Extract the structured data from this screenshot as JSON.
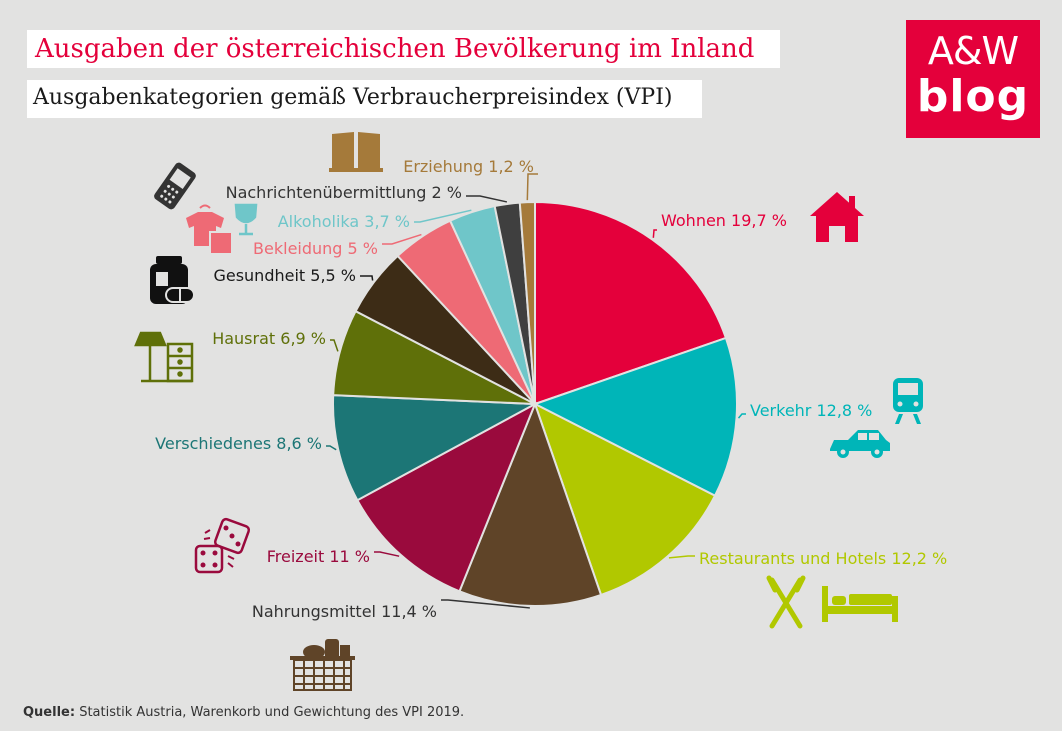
{
  "chart_data": {
    "type": "pie",
    "title": "Ausgaben der österreichischen Bevölkerung im Inland",
    "subtitle": "Ausgabenkategorien gemäß Verbraucherpreisindex (VPI)",
    "slices": [
      {
        "label": "Wohnen 19,7 %",
        "value": 19.7,
        "color": "#e4003b",
        "icon": "house-icon"
      },
      {
        "label": "Verkehr 12,8 %",
        "value": 12.8,
        "color": "#00b5b8",
        "icon": "train-car-icon"
      },
      {
        "label": "Restaurants und Hotels 12,2 %",
        "value": 12.2,
        "color": "#b1c800",
        "icon": "cutlery-bed-icon"
      },
      {
        "label": "Nahrungsmittel 11,4 %",
        "value": 11.4,
        "color": "#5f4428",
        "icon": "food-basket-icon"
      },
      {
        "label": "Freizeit 11 %",
        "value": 11.0,
        "color": "#9a0a3d",
        "icon": "dice-icon"
      },
      {
        "label": "Verschiedenes 8,6 %",
        "value": 8.6,
        "color": "#1c7676",
        "icon": ""
      },
      {
        "label": "Hausrat 6,9 %",
        "value": 6.9,
        "color": "#5f7009",
        "icon": "lamp-cabinet-icon"
      },
      {
        "label": "Gesundheit 5,5 %",
        "value": 5.5,
        "color": "#3d2c16",
        "icon": "medicine-icon"
      },
      {
        "label": "Bekleidung 5 %",
        "value": 5.0,
        "color": "#ee6a75",
        "icon": "clothing-icon"
      },
      {
        "label": "Alkoholika 3,7 %",
        "value": 3.7,
        "color": "#6fc6c9",
        "icon": "wine-glass-icon"
      },
      {
        "label": "Nachrichtenübermittlung 2 %",
        "value": 2.0,
        "color": "#3f3f3f",
        "icon": "phone-icon"
      },
      {
        "label": "Erziehung 1,2 %",
        "value": 1.2,
        "color": "#a57a3a",
        "icon": "book-icon"
      }
    ],
    "label_colors": {
      "Wohnen": "#e4003b",
      "Verkehr": "#00b5b8",
      "Restaurants und Hotels": "#b1c800",
      "Nahrungsmittel": "#333333",
      "Freizeit": "#9a0a3d",
      "Verschiedenes": "#1c7676",
      "Hausrat": "#5f7009",
      "Gesundheit": "#1a1a1a",
      "Bekleidung": "#ee6a75",
      "Alkoholika": "#6fc6c9",
      "Nachrichtenübermittlung": "#333333",
      "Erziehung": "#a57a3a"
    }
  },
  "logo": {
    "line1": "A&W",
    "line2": "blog",
    "color": "#e4003b"
  },
  "source": {
    "label": "Quelle:",
    "text": " Statistik Austria, Warenkorb und Gewichtung des VPI 2019."
  }
}
